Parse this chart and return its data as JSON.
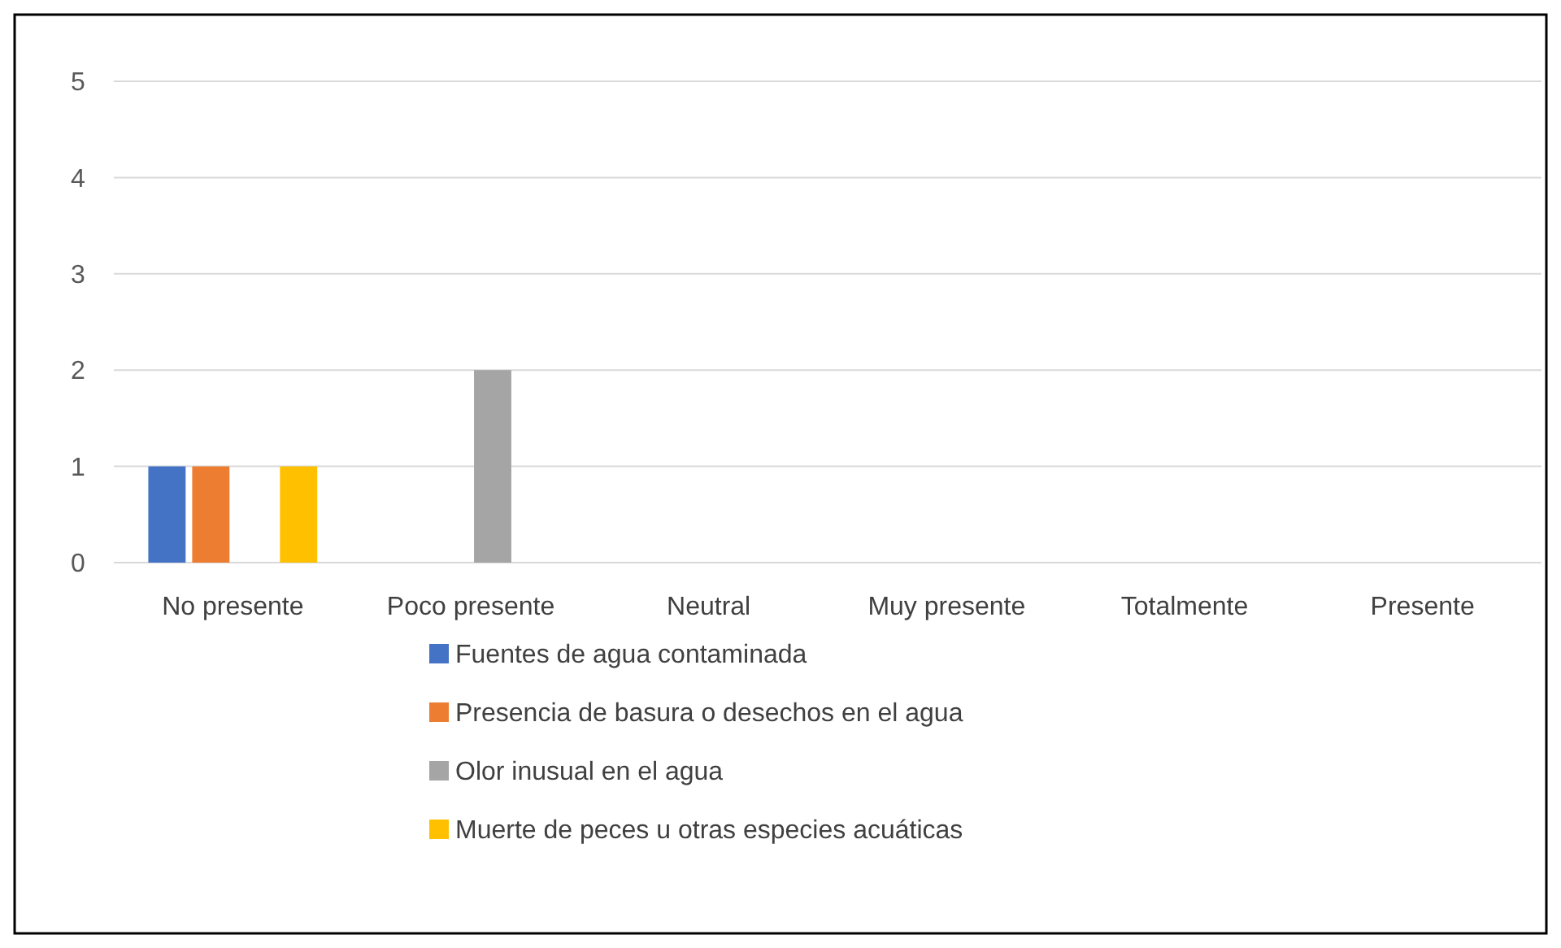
{
  "chart_data": {
    "type": "bar",
    "categories": [
      "No presente",
      "Poco presente",
      "Neutral",
      "Muy presente",
      "Totalmente",
      "Presente"
    ],
    "series": [
      {
        "name": "Fuentes de agua contaminada",
        "color": "#4472c4",
        "values": [
          1,
          0,
          0,
          0,
          0,
          0
        ]
      },
      {
        "name": "Presencia de basura o desechos en el agua",
        "color": "#ed7d31",
        "values": [
          1,
          0,
          0,
          0,
          0,
          0
        ]
      },
      {
        "name": "Olor inusual en el agua",
        "color": "#a5a5a5",
        "values": [
          0,
          2,
          0,
          0,
          0,
          0
        ]
      },
      {
        "name": "Muerte de peces u otras especies acuáticas",
        "color": "#ffc000",
        "values": [
          1,
          0,
          0,
          0,
          0,
          0
        ]
      }
    ],
    "ylim": [
      0,
      5
    ],
    "yticks": [
      0,
      1,
      2,
      3,
      4,
      5
    ],
    "grid": "y",
    "legend": "bottom"
  }
}
